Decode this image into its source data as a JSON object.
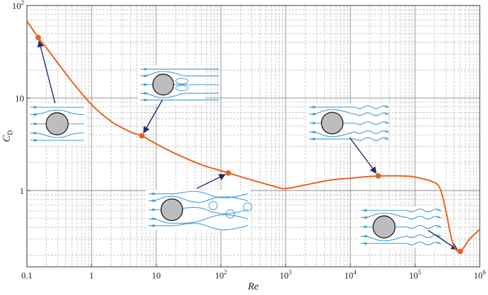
{
  "chart_data": {
    "type": "line",
    "xscale": "log",
    "yscale": "log",
    "xlim": [
      0.1,
      1000000
    ],
    "ylim": [
      0.15,
      100
    ],
    "xlabel": "Re",
    "ylabel": "C",
    "ylabel_subscript": "D",
    "grid": true,
    "x_ticks": [
      {
        "value": 0.1,
        "base": "0.1",
        "exp": ""
      },
      {
        "value": 1,
        "base": "1",
        "exp": ""
      },
      {
        "value": 10,
        "base": "10",
        "exp": ""
      },
      {
        "value": 100,
        "base": "10",
        "exp": "2"
      },
      {
        "value": 1000,
        "base": "10",
        "exp": "3"
      },
      {
        "value": 10000,
        "base": "10",
        "exp": "4"
      },
      {
        "value": 100000,
        "base": "10",
        "exp": "5"
      },
      {
        "value": 1000000,
        "base": "10",
        "exp": "6"
      }
    ],
    "y_ticks": [
      {
        "value": 1,
        "base": "1",
        "exp": ""
      },
      {
        "value": 10,
        "base": "10",
        "exp": ""
      },
      {
        "value": 100,
        "base": "10",
        "exp": "2"
      }
    ],
    "series": [
      {
        "color": "#e8601c",
        "x": [
          0.1,
          0.15,
          0.2,
          0.3,
          0.5,
          1,
          2,
          4,
          6,
          10,
          20,
          50,
          130,
          300,
          700,
          1000,
          2000,
          5000,
          10000,
          20000,
          30000,
          60000,
          100000,
          200000,
          250000,
          300000,
          350000,
          400000,
          500000,
          700000,
          1000000
        ],
        "y": [
          68,
          45,
          35,
          24,
          15,
          8.5,
          5.6,
          4.3,
          3.9,
          3.2,
          2.5,
          1.9,
          1.55,
          1.3,
          1.1,
          1.05,
          1.15,
          1.3,
          1.36,
          1.42,
          1.44,
          1.44,
          1.4,
          1.22,
          1.0,
          0.6,
          0.35,
          0.25,
          0.22,
          0.3,
          0.38
        ]
      }
    ],
    "highlighted_points": [
      {
        "x": 0.15,
        "y": 45
      },
      {
        "x": 6,
        "y": 3.9
      },
      {
        "x": 130,
        "y": 1.55
      },
      {
        "x": 27000,
        "y": 1.44
      },
      {
        "x": 500000,
        "y": 0.22
      }
    ],
    "flow_insets": [
      {
        "regime": "creeping-flow",
        "points_to": 0
      },
      {
        "regime": "attached-vortices",
        "points_to": 1
      },
      {
        "regime": "vortex-street",
        "points_to": 2
      },
      {
        "regime": "laminar-boundary-layer-turbulent-wake",
        "points_to": 3
      },
      {
        "regime": "turbulent-boundary-layer-narrow-wake",
        "points_to": 4
      }
    ],
    "colors": {
      "curve": "#e8601c",
      "streamline": "#3a9ad9",
      "arrow": "#1f2a6e",
      "cylinder_fill": "#bdbdbd"
    }
  }
}
